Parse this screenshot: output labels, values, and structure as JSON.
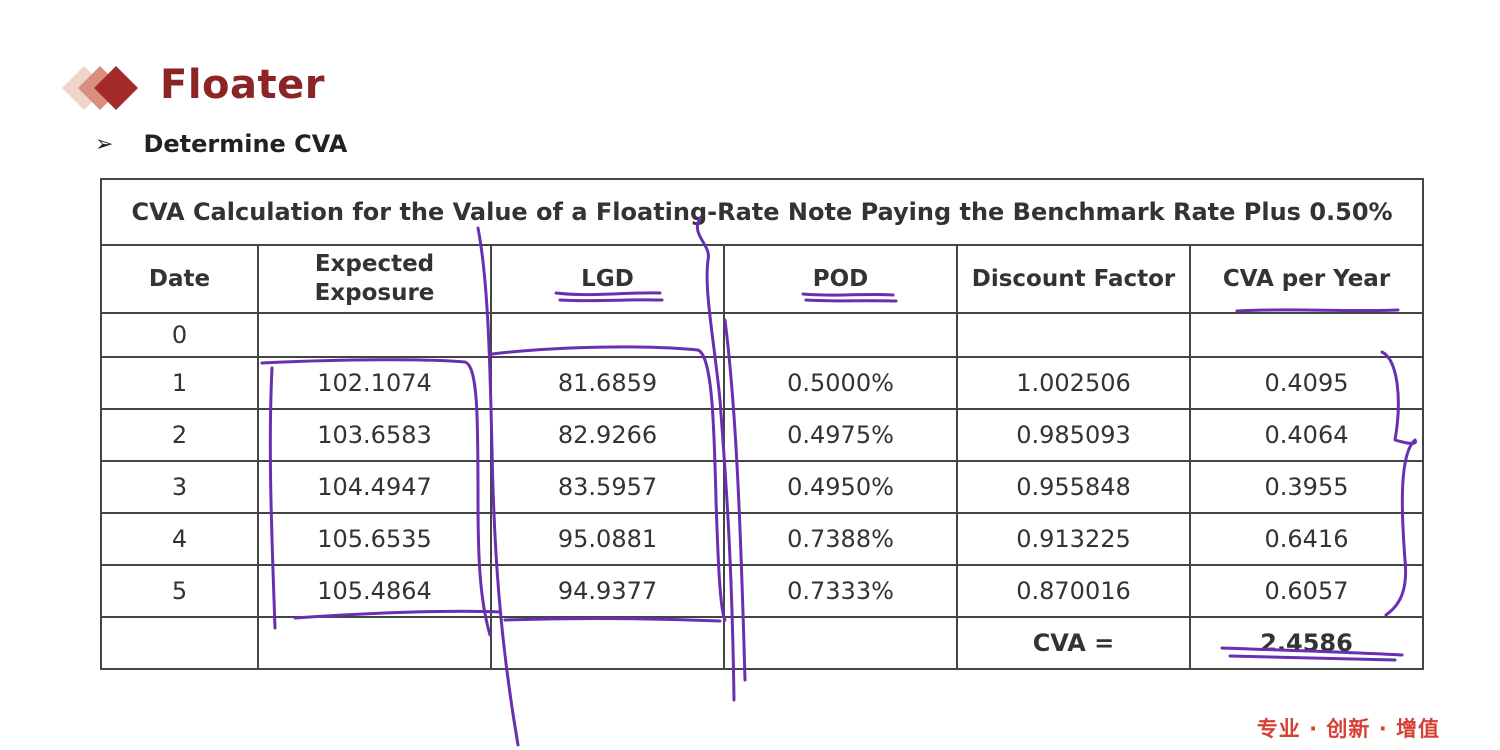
{
  "slide": {
    "title": "Floater",
    "bullet": "Determine CVA",
    "footer": "专业 · 创新 · 增值"
  },
  "table": {
    "caption": "CVA Calculation for the Value of a Floating-Rate Note Paying the Benchmark Rate Plus 0.50%",
    "headers": [
      "Date",
      "Expected Exposure",
      "LGD",
      "POD",
      "Discount Factor",
      "CVA per Year"
    ],
    "rows": [
      [
        "0",
        "",
        "",
        "",
        "",
        ""
      ],
      [
        "1",
        "102.1074",
        "81.6859",
        "0.5000%",
        "1.002506",
        "0.4095"
      ],
      [
        "2",
        "103.6583",
        "82.9266",
        "0.4975%",
        "0.985093",
        "0.4064"
      ],
      [
        "3",
        "104.4947",
        "83.5957",
        "0.4950%",
        "0.955848",
        "0.3955"
      ],
      [
        "4",
        "105.6535",
        "95.0881",
        "0.7388%",
        "0.913225",
        "0.6416"
      ],
      [
        "5",
        "105.4864",
        "94.9377",
        "0.7333%",
        "0.870016",
        "0.6057"
      ]
    ],
    "total_label": "CVA =",
    "total_value": "2.4586"
  },
  "colors": {
    "title": "#8b2525",
    "ink": "#6a2fb0",
    "footer": "#d64032"
  },
  "icons": {
    "logo": "diamond-logo-icon",
    "bullet": "arrow-bullet-icon"
  }
}
